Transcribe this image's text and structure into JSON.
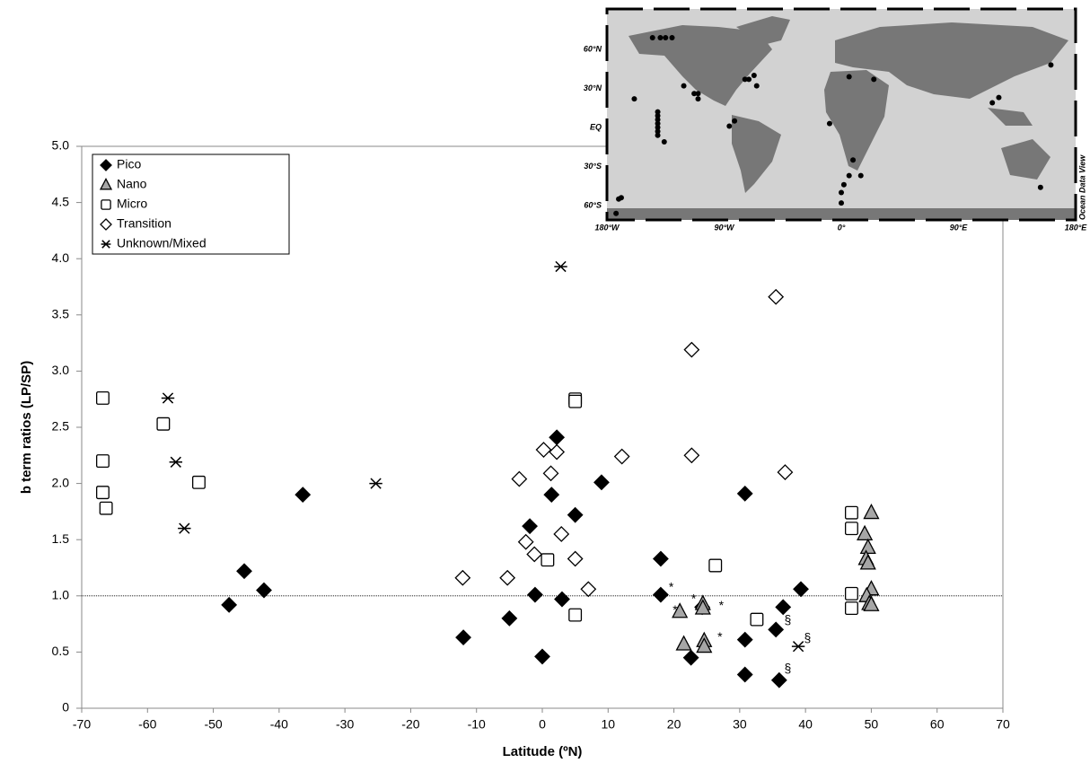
{
  "chart_data": {
    "type": "scatter",
    "x_label": "Latitude (ºN)",
    "y_label": "b term ratios (LP/SP)",
    "xlim": [
      -70,
      70
    ],
    "xticks": [
      -70,
      -60,
      -50,
      -40,
      -30,
      -20,
      -10,
      0,
      10,
      20,
      30,
      40,
      50,
      60,
      70
    ],
    "ylim": [
      0,
      5
    ],
    "yticks": [
      0,
      0.5,
      {
        "value": 1,
        "label": "1.0"
      },
      1.5,
      {
        "value": 2,
        "label": "2.0"
      },
      2.5,
      {
        "value": 3,
        "label": "3.0"
      },
      3.5,
      {
        "value": 4,
        "label": "4.0"
      },
      4.5,
      {
        "value": 5,
        "label": "5.0"
      }
    ],
    "reference_line": 1,
    "legend": "top-left",
    "series": [
      {
        "name": "Pico",
        "marker": "diamond",
        "color": "#000000",
        "stroke": "#000000",
        "x": [
          -47.6,
          -45.3,
          -42.3,
          -36.4,
          -12.0,
          -5.0,
          -1.9,
          -1.1,
          0,
          1.4,
          2.2,
          3.0,
          5.0,
          9.0,
          18.0,
          18.0,
          22.6,
          24.3,
          30.8,
          30.8,
          30.8,
          35.5,
          36.0,
          36.6,
          39.3
        ],
        "values": [
          0.92,
          1.22,
          1.05,
          1.9,
          0.63,
          0.8,
          1.62,
          1.01,
          0.46,
          1.9,
          2.41,
          0.97,
          1.72,
          2.01,
          1.33,
          1.01,
          0.45,
          0.9,
          1.91,
          0.61,
          0.3,
          0.7,
          0.25,
          0.9,
          1.06
        ]
      },
      {
        "name": "Nano",
        "marker": "triangle",
        "color": "#a6a6a6",
        "stroke": "#000000",
        "x": [
          20.9,
          21.5,
          24.4,
          24.4,
          24.6,
          24.6,
          50.0,
          49.0,
          49.5,
          49.2,
          49.5,
          50.0,
          49.3,
          49.7,
          50.0
        ],
        "values": [
          0.86,
          0.57,
          0.93,
          0.89,
          0.6,
          0.55,
          1.74,
          1.55,
          1.43,
          1.33,
          1.29,
          1.06,
          1.0,
          0.93,
          0.92
        ]
      },
      {
        "name": "Micro",
        "marker": "square",
        "color": "#ffffff",
        "stroke": "#000000",
        "x": [
          -66.8,
          -66.8,
          -66.8,
          -66.3,
          -57.6,
          -52.2,
          0.8,
          5.0,
          5.0,
          5.0,
          26.3,
          32.6,
          47.0,
          47.0,
          47.0,
          47.0
        ],
        "values": [
          2.76,
          2.2,
          1.92,
          1.78,
          2.53,
          2.01,
          1.32,
          2.75,
          2.73,
          0.83,
          1.27,
          0.79,
          1.74,
          1.6,
          1.02,
          0.89
        ]
      },
      {
        "name": "Transition",
        "marker": "diamond",
        "color": "#ffffff",
        "stroke": "#000000",
        "x": [
          -12.1,
          -5.3,
          -3.5,
          -2.5,
          -1.2,
          0.2,
          1.3,
          2.2,
          2.9,
          5.0,
          7.0,
          12.1,
          22.7,
          22.7,
          35.5,
          36.9
        ],
        "values": [
          1.16,
          1.16,
          2.04,
          1.48,
          1.37,
          2.3,
          2.09,
          2.28,
          1.55,
          1.33,
          1.06,
          2.24,
          3.19,
          2.25,
          3.66,
          2.1
        ]
      },
      {
        "name": "Unknown/Mixed",
        "marker": "asterisk",
        "color": "#000000",
        "stroke": "#000000",
        "x": [
          -56.9,
          -55.7,
          -54.4,
          -25.3,
          2.8,
          38.9
        ],
        "values": [
          2.76,
          2.19,
          1.6,
          2.0,
          3.93,
          0.55
        ]
      }
    ],
    "annotations": [
      {
        "text": "*",
        "x": 19.6,
        "y": 1.07
      },
      {
        "text": "*",
        "x": 23.0,
        "y": 0.97
      },
      {
        "text": "*",
        "x": 27.2,
        "y": 0.91
      },
      {
        "text": "*",
        "x": 20.2,
        "y": 0.87
      },
      {
        "text": "*",
        "x": 27.0,
        "y": 0.63
      },
      {
        "text": "§",
        "x": 37.3,
        "y": 0.78
      },
      {
        "text": "§",
        "x": 40.3,
        "y": 0.62
      },
      {
        "text": "§",
        "x": 37.3,
        "y": 0.35
      }
    ]
  },
  "inset_map": {
    "lat_labels": [
      {
        "value": 60,
        "label": "60°N"
      },
      {
        "value": 30,
        "label": "30°N"
      },
      {
        "value": 0,
        "label": "EQ"
      },
      {
        "value": -30,
        "label": "30°S"
      },
      {
        "value": -60,
        "label": "60°S"
      }
    ],
    "lon_labels": [
      {
        "value": -180,
        "label": "180°W"
      },
      {
        "value": -90,
        "label": "90°W"
      },
      {
        "value": 0,
        "label": "0°"
      },
      {
        "value": 90,
        "label": "90°E"
      },
      {
        "value": 180,
        "label": "180°E"
      }
    ],
    "credit": "Ocean Data View",
    "stations": {
      "lon": [
        -145,
        -139,
        -135,
        -130,
        -159,
        -121,
        -113,
        -110,
        -110,
        -141,
        -141,
        -141,
        -141,
        -141,
        -141,
        -141,
        -136,
        -86,
        -82,
        -74,
        -71,
        -67,
        -65,
        -9,
        6,
        25,
        9,
        6,
        2,
        0,
        0,
        15,
        116,
        121,
        161,
        153,
        -171,
        -169,
        -173
      ],
      "lat": [
        69,
        69,
        69,
        69,
        22,
        32,
        26,
        26,
        22,
        12,
        9,
        6,
        3,
        0,
        -3,
        -6,
        -11,
        1,
        5,
        37,
        37,
        40,
        32,
        3,
        39,
        37,
        -25,
        -37,
        -44,
        -50,
        -58,
        -37,
        19,
        23,
        48,
        -46,
        -55,
        -54,
        -66
      ]
    }
  }
}
